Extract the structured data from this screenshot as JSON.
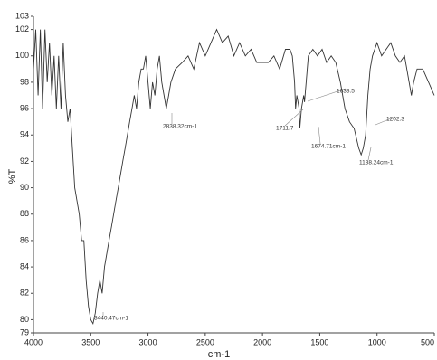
{
  "chart_data": {
    "type": "line",
    "x_label": "cm-1",
    "y_label": "%T",
    "xlim": [
      4000,
      500
    ],
    "ylim": [
      79,
      103
    ],
    "xticks": [
      4000,
      3500,
      3000,
      2500,
      2000,
      1500,
      1000,
      500
    ],
    "yticks": [
      79,
      80,
      82,
      84,
      86,
      88,
      90,
      92,
      94,
      96,
      98,
      100,
      102,
      103
    ],
    "x": [
      4000,
      3980,
      3960,
      3940,
      3920,
      3900,
      3880,
      3860,
      3840,
      3820,
      3800,
      3780,
      3760,
      3740,
      3720,
      3700,
      3680,
      3660,
      3640,
      3620,
      3600,
      3580,
      3560,
      3540,
      3520,
      3500,
      3480,
      3460,
      3440,
      3420,
      3400,
      3380,
      3360,
      3340,
      3320,
      3300,
      3280,
      3260,
      3240,
      3220,
      3200,
      3180,
      3160,
      3140,
      3120,
      3100,
      3080,
      3060,
      3040,
      3020,
      3000,
      2980,
      2960,
      2940,
      2920,
      2900,
      2880,
      2860,
      2840,
      2820,
      2800,
      2760,
      2700,
      2650,
      2600,
      2550,
      2500,
      2450,
      2400,
      2350,
      2300,
      2250,
      2200,
      2150,
      2100,
      2050,
      2000,
      1950,
      1900,
      1850,
      1800,
      1760,
      1740,
      1720,
      1711,
      1700,
      1680,
      1674,
      1660,
      1640,
      1633,
      1600,
      1560,
      1520,
      1480,
      1440,
      1400,
      1360,
      1320,
      1280,
      1240,
      1200,
      1160,
      1138,
      1120,
      1100,
      1080,
      1060,
      1040,
      1000,
      960,
      920,
      880,
      840,
      800,
      760,
      720,
      700,
      680,
      650,
      600,
      550,
      500
    ],
    "series": [
      {
        "color": "#333333",
        "values": [
          99,
          102,
          97,
          102,
          96,
          102,
          98,
          101,
          97,
          100,
          96,
          100,
          96,
          101,
          97,
          95,
          96,
          93,
          90,
          89,
          88,
          86,
          86,
          83,
          81,
          80,
          79.7,
          80.5,
          82,
          83,
          82,
          84,
          85,
          86,
          87,
          88,
          89,
          90,
          91,
          92,
          93,
          94,
          95,
          96,
          97,
          96,
          98,
          99,
          99,
          100,
          98,
          96,
          98,
          97,
          99,
          100,
          98,
          97,
          96,
          97,
          98,
          99,
          99.5,
          100,
          99,
          101,
          100,
          101,
          102,
          101,
          101.5,
          100,
          101,
          100,
          100.5,
          99.5,
          99.5,
          99.5,
          100,
          99,
          100.5,
          100.5,
          100,
          98,
          96,
          97,
          96,
          94.5,
          96,
          97,
          96.5,
          100,
          100.5,
          100,
          100.5,
          99.5,
          100,
          99.5,
          98,
          96,
          95,
          94.5,
          93,
          92.5,
          93,
          94,
          97,
          99,
          100,
          101,
          100,
          100.5,
          101,
          100,
          99.5,
          100,
          98,
          97,
          98,
          99,
          99,
          98,
          97
        ]
      }
    ],
    "annotations": [
      "3440.47cm-1",
      "2838.32cm-1",
      "1711.7",
      "1674.71cm-1",
      "1633.5",
      "1138.24cm-1",
      "1202.3"
    ]
  }
}
